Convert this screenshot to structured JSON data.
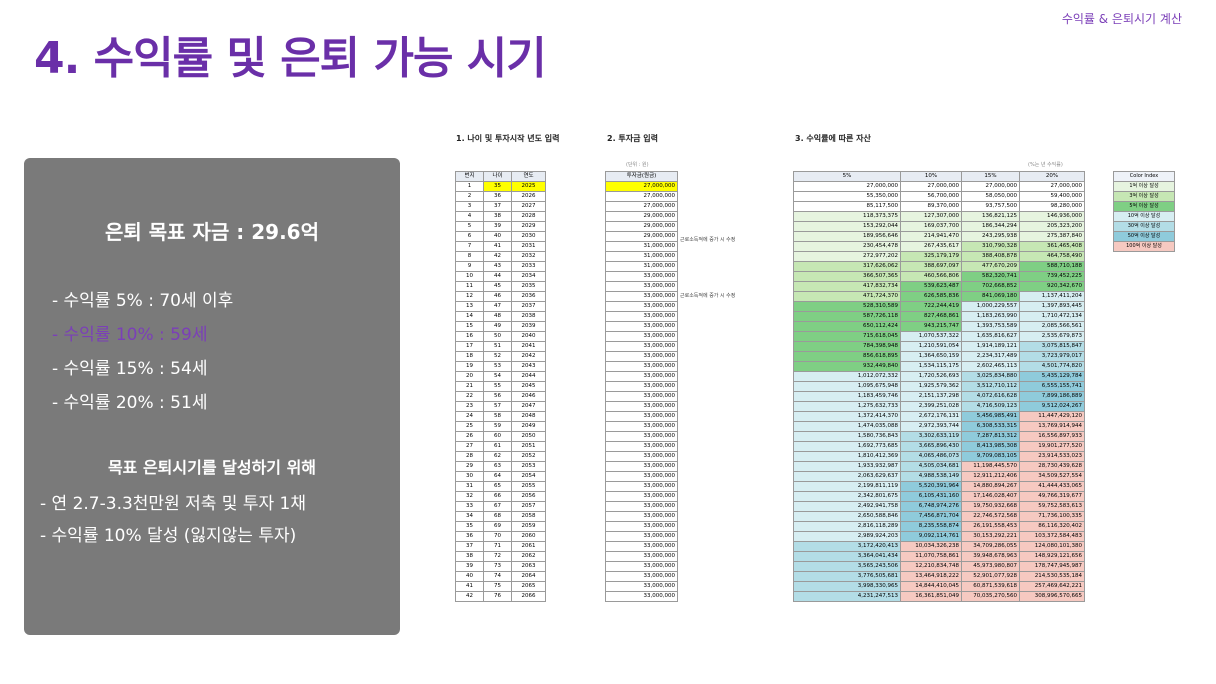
{
  "header": {
    "top_label": "수익률 & 은퇴시기 계산",
    "title": "4. 수익률 및 은퇴 가능 시기"
  },
  "panel": {
    "goal": "은퇴 목표 자금 : 29.6억",
    "rates": [
      "- 수익률   5% : 70세 이후",
      "- 수익률 10% : 59세",
      "- 수익률 15% : 54세",
      "- 수익률 20% : 51세"
    ],
    "highlight_index": 1,
    "achieve_title": "목표 은퇴시기를 달성하기 위해",
    "achieve_items": [
      "- 연 2.7-3.3천만원 저축 및 투자 1채",
      "- 수익률 10% 달성 (잃지않는 투자)"
    ]
  },
  "sheet": {
    "section1": "1. 나이 및 투자시작 년도 입력",
    "section2": "2. 투자금 입력",
    "section3": "3. 수익률에 따른 자산",
    "unit_invest": "(단위 : 원)",
    "unit_asset": "(%는 년 수익률)",
    "headers1": [
      "번지",
      "나이",
      "연도"
    ],
    "header2": "투자금(원금)",
    "headers3": [
      "5%",
      "10%",
      "15%",
      "20%"
    ],
    "note1": "근로소득적에 증가 시 수정",
    "note2": "근로소득적에 증가 시 수정",
    "color_index": {
      "title": "Color Index",
      "items": [
        "1억 이상 달성",
        "3억 이상 달성",
        "5억 이상 달성",
        "10억 이상 달성",
        "30억 이상 달성",
        "50억 이상 달성",
        "100억 이상 달성"
      ],
      "colors": [
        "#e6f4df",
        "#c6e7b4",
        "#7fcf84",
        "#d7eef2",
        "#b3dde6",
        "#8fcbdb",
        "#f6c9c1"
      ]
    },
    "rows": [
      [
        "1",
        "35",
        "2025",
        "27,000,000",
        "27,000,000",
        "27,000,000",
        "27,000,000",
        "27,000,000"
      ],
      [
        "2",
        "36",
        "2026",
        "27,000,000",
        "55,350,000",
        "56,700,000",
        "58,050,000",
        "59,400,000"
      ],
      [
        "3",
        "37",
        "2027",
        "27,000,000",
        "85,117,500",
        "89,370,000",
        "93,757,500",
        "98,280,000"
      ],
      [
        "4",
        "38",
        "2028",
        "29,000,000",
        "118,373,375",
        "127,307,000",
        "136,821,125",
        "146,936,000"
      ],
      [
        "5",
        "39",
        "2029",
        "29,000,000",
        "153,292,044",
        "169,037,700",
        "186,344,294",
        "205,323,200"
      ],
      [
        "6",
        "40",
        "2030",
        "29,000,000",
        "189,956,646",
        "214,941,470",
        "243,295,938",
        "275,387,840"
      ],
      [
        "7",
        "41",
        "2031",
        "31,000,000",
        "230,454,478",
        "267,435,617",
        "310,790,328",
        "361,465,408"
      ],
      [
        "8",
        "42",
        "2032",
        "31,000,000",
        "272,977,202",
        "325,179,179",
        "388,408,878",
        "464,758,490"
      ],
      [
        "9",
        "43",
        "2033",
        "31,000,000",
        "317,626,062",
        "388,697,097",
        "477,670,209",
        "588,710,188"
      ],
      [
        "10",
        "44",
        "2034",
        "33,000,000",
        "366,507,365",
        "460,566,806",
        "582,320,741",
        "739,452,225"
      ],
      [
        "11",
        "45",
        "2035",
        "33,000,000",
        "417,832,734",
        "539,623,487",
        "702,668,852",
        "920,342,670"
      ],
      [
        "12",
        "46",
        "2036",
        "33,000,000",
        "471,724,370",
        "626,585,836",
        "841,069,180",
        "1,137,411,204"
      ],
      [
        "13",
        "47",
        "2037",
        "33,000,000",
        "528,310,589",
        "722,244,419",
        "1,000,229,557",
        "1,397,893,445"
      ],
      [
        "14",
        "48",
        "2038",
        "33,000,000",
        "587,726,118",
        "827,468,861",
        "1,183,263,990",
        "1,710,472,134"
      ],
      [
        "15",
        "49",
        "2039",
        "33,000,000",
        "650,112,424",
        "943,215,747",
        "1,393,753,589",
        "2,085,566,561"
      ],
      [
        "16",
        "50",
        "2040",
        "33,000,000",
        "715,618,045",
        "1,070,537,322",
        "1,635,816,627",
        "2,535,679,873"
      ],
      [
        "17",
        "51",
        "2041",
        "33,000,000",
        "784,398,948",
        "1,210,591,054",
        "1,914,189,121",
        "3,075,815,847"
      ],
      [
        "18",
        "52",
        "2042",
        "33,000,000",
        "856,618,895",
        "1,364,650,159",
        "2,234,317,489",
        "3,723,979,017"
      ],
      [
        "19",
        "53",
        "2043",
        "33,000,000",
        "932,449,840",
        "1,534,115,175",
        "2,602,465,113",
        "4,501,774,820"
      ],
      [
        "20",
        "54",
        "2044",
        "33,000,000",
        "1,012,072,332",
        "1,720,526,693",
        "3,025,834,880",
        "5,435,129,784"
      ],
      [
        "21",
        "55",
        "2045",
        "33,000,000",
        "1,095,675,948",
        "1,925,579,362",
        "3,512,710,112",
        "6,555,155,741"
      ],
      [
        "22",
        "56",
        "2046",
        "33,000,000",
        "1,183,459,746",
        "2,151,137,298",
        "4,072,616,628",
        "7,899,186,889"
      ],
      [
        "23",
        "57",
        "2047",
        "33,000,000",
        "1,275,632,733",
        "2,399,251,028",
        "4,716,509,123",
        "9,512,024,267"
      ],
      [
        "24",
        "58",
        "2048",
        "33,000,000",
        "1,372,414,370",
        "2,672,176,131",
        "5,456,985,491",
        "11,447,429,120"
      ],
      [
        "25",
        "59",
        "2049",
        "33,000,000",
        "1,474,035,088",
        "2,972,393,744",
        "6,308,533,315",
        "13,769,914,944"
      ],
      [
        "26",
        "60",
        "2050",
        "33,000,000",
        "1,580,736,843",
        "3,302,633,119",
        "7,287,813,312",
        "16,556,897,933"
      ],
      [
        "27",
        "61",
        "2051",
        "33,000,000",
        "1,692,773,685",
        "3,665,896,430",
        "8,413,985,308",
        "19,901,277,520"
      ],
      [
        "28",
        "62",
        "2052",
        "33,000,000",
        "1,810,412,369",
        "4,065,486,073",
        "9,709,083,105",
        "23,914,533,023"
      ],
      [
        "29",
        "63",
        "2053",
        "33,000,000",
        "1,933,932,987",
        "4,505,034,681",
        "11,198,445,570",
        "28,730,439,628"
      ],
      [
        "30",
        "64",
        "2054",
        "33,000,000",
        "2,063,629,637",
        "4,988,538,149",
        "12,911,212,406",
        "34,509,527,554"
      ],
      [
        "31",
        "65",
        "2055",
        "33,000,000",
        "2,199,811,119",
        "5,520,391,964",
        "14,880,894,267",
        "41,444,433,065"
      ],
      [
        "32",
        "66",
        "2056",
        "33,000,000",
        "2,342,801,675",
        "6,105,431,160",
        "17,146,028,407",
        "49,766,319,677"
      ],
      [
        "33",
        "67",
        "2057",
        "33,000,000",
        "2,492,941,758",
        "6,748,974,276",
        "19,750,932,668",
        "59,752,583,613"
      ],
      [
        "34",
        "68",
        "2058",
        "33,000,000",
        "2,650,588,846",
        "7,456,871,704",
        "22,746,572,568",
        "71,736,100,335"
      ],
      [
        "35",
        "69",
        "2059",
        "33,000,000",
        "2,816,118,289",
        "8,235,558,874",
        "26,191,558,453",
        "86,116,320,402"
      ],
      [
        "36",
        "70",
        "2060",
        "33,000,000",
        "2,989,924,203",
        "9,092,114,761",
        "30,153,292,221",
        "103,372,584,483"
      ],
      [
        "37",
        "71",
        "2061",
        "33,000,000",
        "3,172,420,413",
        "10,034,326,238",
        "34,709,286,055",
        "124,080,101,380"
      ],
      [
        "38",
        "72",
        "2062",
        "33,000,000",
        "3,364,041,434",
        "11,070,758,861",
        "39,948,678,963",
        "148,929,121,656"
      ],
      [
        "39",
        "73",
        "2063",
        "33,000,000",
        "3,565,243,506",
        "12,210,834,748",
        "45,973,980,807",
        "178,747,945,987"
      ],
      [
        "40",
        "74",
        "2064",
        "33,000,000",
        "3,776,505,681",
        "13,464,918,222",
        "52,901,077,928",
        "214,530,535,184"
      ],
      [
        "41",
        "75",
        "2065",
        "33,000,000",
        "3,998,330,965",
        "14,844,410,045",
        "60,871,539,618",
        "257,469,642,221"
      ],
      [
        "42",
        "76",
        "2066",
        "33,000,000",
        "4,231,247,513",
        "16,361,851,049",
        "70,035,270,560",
        "308,996,570,665"
      ]
    ]
  }
}
